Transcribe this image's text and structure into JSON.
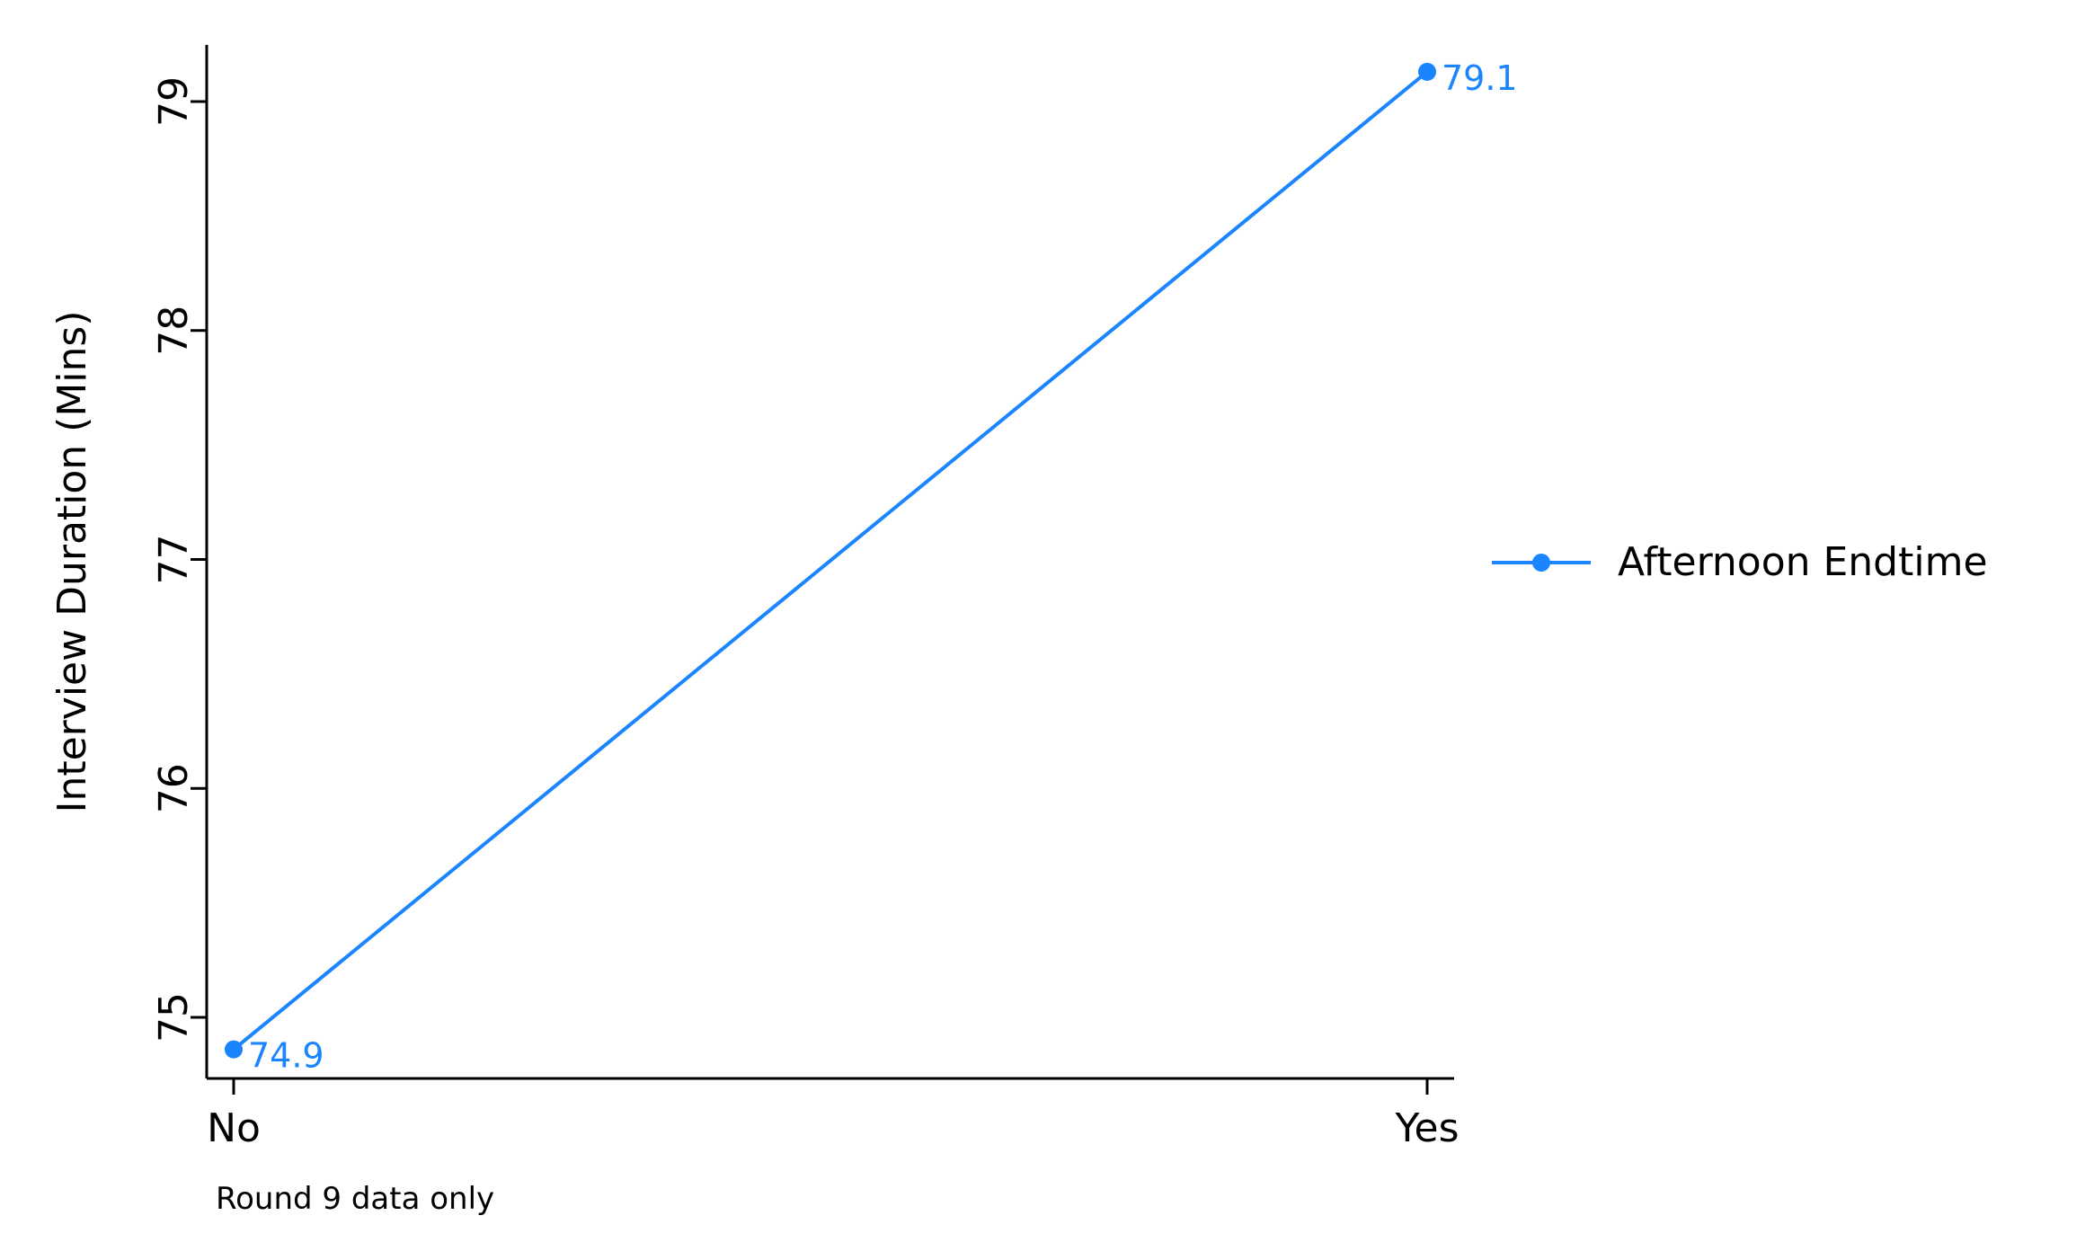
{
  "chart_data": {
    "type": "line",
    "title": "",
    "xlabel": "",
    "ylabel": "Interview Duration (Mins)",
    "categories": [
      "No",
      "Yes"
    ],
    "series": [
      {
        "name": "Afternoon Endtime",
        "values": [
          74.86,
          79.13
        ],
        "labels": [
          "74.9",
          "79.1"
        ],
        "color": "#1A85FF"
      }
    ],
    "yticks": [
      75,
      76,
      77,
      78,
      79
    ],
    "ytick_labels": [
      "75",
      "76",
      "77",
      "78",
      "79"
    ],
    "ylim": [
      74.75,
      79.25
    ],
    "grid": false,
    "legend_position": "right",
    "note": "Round 9 data only"
  }
}
